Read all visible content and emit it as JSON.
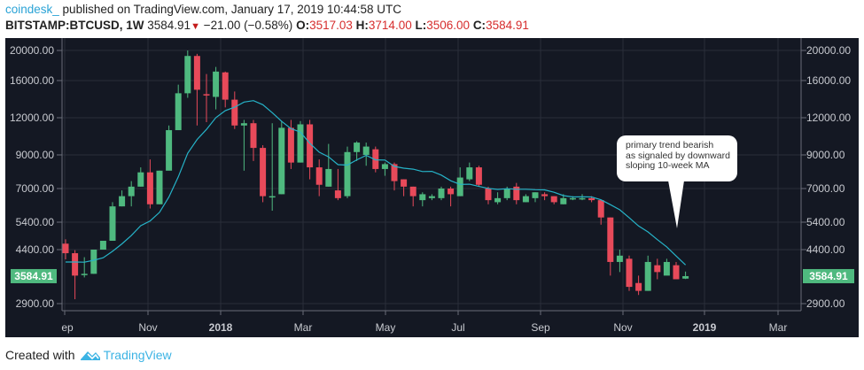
{
  "header": {
    "publisher": "coindesk_",
    "published_text": " published on TradingView.com, January 17, 2019 10:44:58 UTC",
    "symbol": "BITSTAMP:BTCUSD, 1W",
    "last_price": "3584.91",
    "change_icon": "down-triangle-icon",
    "change": "−21.00 (−0.58%)",
    "open_label": "O:",
    "open": "3517.03",
    "high_label": "H:",
    "high": "3714.00",
    "low_label": "L:",
    "low": "3506.00",
    "close_label": "C:",
    "close": "3584.91"
  },
  "footer": {
    "created_with": "Created with",
    "brand": "TradingView",
    "brand_icon": "tradingview-logo-icon"
  },
  "annotation": {
    "line1": "primary trend bearish",
    "line2": "as signaled by downward",
    "line3": "sloping 10-week MA"
  },
  "colors": {
    "background": "#141823",
    "up": "#4fb97f",
    "down": "#e84a5a",
    "ma": "#26b3c8",
    "grid": "#2a2e39",
    "axis_text": "#c8cad0",
    "price_label": "#4fb97f",
    "publisher": "#2aa3d6",
    "ohlc_values": "#d62d2d"
  },
  "chart_data": {
    "type": "candlestick",
    "title": "BITSTAMP:BTCUSD, 1W",
    "xlabel": "",
    "ylabel": "",
    "y_scale": "log",
    "ylim": [
      2700,
      21000
    ],
    "y_ticks": [
      "20000.00",
      "16000.00",
      "12000.00",
      "9000.00",
      "7000.00",
      "5400.00",
      "4400.00",
      "2900.00"
    ],
    "current_price_label": "3584.91",
    "x_ticks": [
      "ep",
      "Nov",
      "2018",
      "Mar",
      "May",
      "Jul",
      "Sep",
      "Nov",
      "2019",
      "Mar"
    ],
    "x_tick_bold": [
      false,
      false,
      true,
      false,
      false,
      false,
      false,
      false,
      true,
      false
    ],
    "grid": true,
    "legend": [],
    "series": [
      {
        "name": "BTCUSD weekly",
        "type": "candlestick",
        "candles_ohlc_approx": [
          [
            4600,
            4280,
            4750,
            4080
          ],
          [
            4280,
            3600,
            4380,
            3000
          ],
          [
            3650,
            3650,
            4150,
            3550
          ],
          [
            3650,
            4400,
            4400,
            3650
          ],
          [
            4400,
            4700,
            4700,
            4400
          ],
          [
            4700,
            6100,
            6300,
            4700
          ],
          [
            6100,
            6600,
            6900,
            6100
          ],
          [
            6600,
            7100,
            7400,
            6100
          ],
          [
            7100,
            7900,
            8200,
            7100
          ],
          [
            7900,
            6200,
            8700,
            6000
          ],
          [
            6200,
            8000,
            8000,
            6200
          ],
          [
            8000,
            10900,
            11300,
            10000
          ],
          [
            10900,
            14500,
            15500,
            14200
          ],
          [
            14500,
            19200,
            20000,
            14000
          ],
          [
            19200,
            14900,
            19500,
            11300
          ],
          [
            14400,
            14300,
            16800,
            11600
          ],
          [
            14100,
            17100,
            17700,
            12800
          ],
          [
            17000,
            13800,
            17100,
            13000
          ],
          [
            13800,
            11300,
            14700,
            11000
          ],
          [
            11300,
            11500,
            11800,
            8000
          ],
          [
            11500,
            9500,
            11800,
            8600
          ],
          [
            9500,
            6600,
            9700,
            6300
          ],
          [
            6600,
            6600,
            11500,
            5900
          ],
          [
            6700,
            11100,
            11700,
            6700
          ],
          [
            11100,
            8500,
            11800,
            8100
          ],
          [
            8500,
            11400,
            11700,
            8500
          ],
          [
            11400,
            8200,
            11800,
            7500
          ],
          [
            8200,
            7200,
            8700,
            6600
          ],
          [
            7100,
            8100,
            9800,
            7100
          ],
          [
            6900,
            6500,
            8100,
            6400
          ],
          [
            6600,
            9200,
            9600,
            6500
          ],
          [
            9200,
            9900,
            10000,
            8600
          ],
          [
            9000,
            9600,
            9900,
            8300
          ],
          [
            9400,
            8100,
            9600,
            7900
          ],
          [
            8100,
            8400,
            8500,
            7700
          ],
          [
            8400,
            7400,
            8500,
            6900
          ],
          [
            7500,
            7100,
            7500,
            6600
          ],
          [
            7100,
            6600,
            7100,
            6100
          ],
          [
            6400,
            6700,
            6800,
            6100
          ],
          [
            6500,
            6600,
            6700,
            6400
          ],
          [
            6500,
            7000,
            7100,
            6400
          ],
          [
            7000,
            6700,
            7100,
            6100
          ],
          [
            6600,
            7600,
            8200,
            6600
          ],
          [
            7500,
            8200,
            8500,
            7400
          ],
          [
            8200,
            7200,
            8300,
            7100
          ],
          [
            7000,
            6400,
            7100,
            6200
          ],
          [
            6300,
            6500,
            6800,
            6200
          ],
          [
            6500,
            7000,
            7100,
            6400
          ],
          [
            7100,
            6400,
            7300,
            6200
          ],
          [
            6300,
            6600,
            6700,
            6300
          ],
          [
            6500,
            6800,
            6800,
            6300
          ],
          [
            6700,
            6600,
            6800,
            6400
          ],
          [
            6600,
            6300,
            6600,
            6200
          ],
          [
            6200,
            6500,
            6700,
            6200
          ],
          [
            6500,
            6500,
            6600,
            6400
          ],
          [
            6500,
            6500,
            6700,
            6400
          ],
          [
            6500,
            6400,
            6600,
            6300
          ],
          [
            6400,
            5600,
            6400,
            5300
          ],
          [
            5600,
            4000,
            5600,
            3600
          ],
          [
            4000,
            4200,
            4400,
            3700
          ],
          [
            4100,
            3300,
            4200,
            3200
          ],
          [
            3400,
            3200,
            3600,
            3100
          ],
          [
            3200,
            4000,
            4200,
            3200
          ],
          [
            3900,
            3700,
            4100,
            3500
          ],
          [
            3600,
            4000,
            4100,
            3700
          ],
          [
            3900,
            3500,
            4000,
            3500
          ],
          [
            3517.03,
            3584.91,
            3714,
            3506
          ]
        ]
      },
      {
        "name": "10-week MA",
        "type": "line",
        "color": "#26b3c8"
      }
    ],
    "annotations": [
      "primary trend bearish as signaled by downward sloping 10-week MA"
    ]
  }
}
